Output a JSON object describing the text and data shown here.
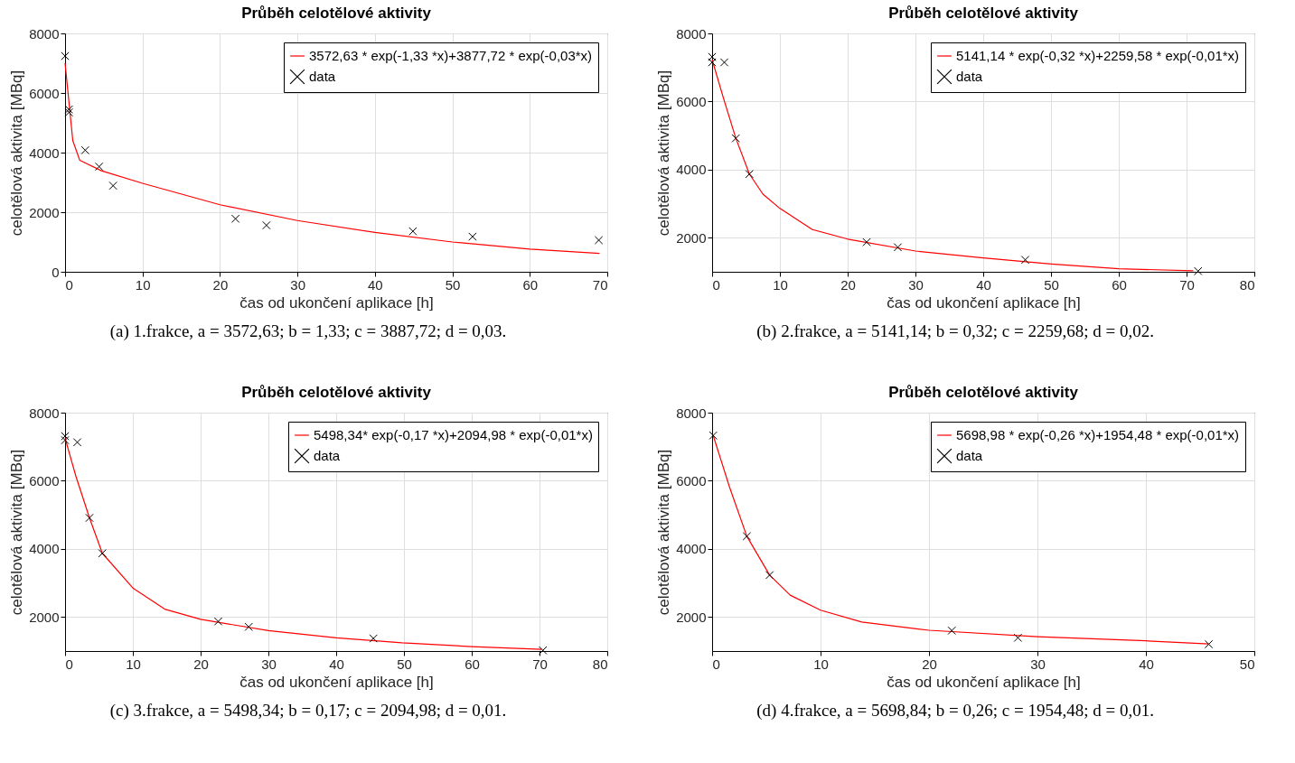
{
  "chart_data": [
    {
      "type": "scatter",
      "title": "Průběh celotělové aktivity",
      "xlabel": "čas od ukončení aplikace [h]",
      "ylabel": "celotělová aktivita [MBq]",
      "xlim": [
        0,
        70
      ],
      "xticks": [
        0,
        10,
        20,
        30,
        40,
        50,
        60,
        70
      ],
      "ylim": [
        0,
        8000
      ],
      "yticks": [
        0,
        2000,
        4000,
        6000,
        8000
      ],
      "grid": true,
      "legend": "top right",
      "annotations": [
        "(a) 1.frakce, a = 3572,63; b = 1,33; c = 3887,72; d = 0,03."
      ],
      "series": [
        {
          "name": "3572,63 * exp(-1,33 *x)+3877,72 * exp(-0,03*x)",
          "type": "line",
          "color": "#ff0000",
          "x": [
            0,
            1.0,
            1.9,
            4.7,
            10,
            20,
            30,
            40,
            50,
            60,
            69
          ],
          "values": [
            7000,
            4400,
            3740,
            3390,
            2970,
            2250,
            1720,
            1320,
            1000,
            760,
            620
          ]
        },
        {
          "name": "data",
          "marker": "cross",
          "color": "#000000",
          "x": [
            0,
            0.5,
            0.5,
            2.6,
            4.4,
            6.2,
            22,
            26,
            44.9,
            52.6,
            68.9
          ],
          "values": [
            7240,
            5450,
            5350,
            4080,
            3530,
            2890,
            1780,
            1560,
            1360,
            1180,
            1060
          ]
        }
      ]
    },
    {
      "type": "scatter",
      "title": "Průběh celotělové aktivity",
      "xlabel": "čas od ukončení aplikace [h]",
      "ylabel": "celotělová aktivita [MBq]",
      "xlim": [
        0,
        80
      ],
      "xticks": [
        0,
        10,
        20,
        30,
        40,
        50,
        60,
        70,
        80
      ],
      "ylim": [
        1000,
        8000
      ],
      "yticks": [
        2000,
        4000,
        6000,
        8000
      ],
      "grid": true,
      "legend": "top right",
      "annotations": [
        "(b) 2.frakce, a = 5141,14; b = 0,32; c = 2259,68; d = 0,02."
      ],
      "series": [
        {
          "name": "5141,14 * exp(-0,32 *x)+2259,58 * exp(-0,01*x)",
          "type": "line",
          "color": "#ff0000",
          "x": [
            0,
            1.7,
            3.5,
            5.5,
            7.5,
            10,
            14.8,
            20,
            30,
            40,
            50,
            60,
            71
          ],
          "values": [
            7230,
            6080,
            4920,
            3870,
            3280,
            2860,
            2240,
            1960,
            1610,
            1410,
            1230,
            1090,
            1030
          ]
        },
        {
          "name": "data",
          "marker": "cross",
          "color": "#000000",
          "x": [
            0,
            0,
            1.8,
            3.5,
            5.5,
            22.8,
            27.4,
            46.2,
            71.7
          ],
          "values": [
            7310,
            7150,
            7150,
            4920,
            3870,
            1870,
            1720,
            1350,
            1020
          ]
        }
      ]
    },
    {
      "type": "scatter",
      "title": "Průběh celotělové aktivity",
      "xlabel": "čas od ukončení aplikace [h]",
      "ylabel": "celotělová aktivita [MBq]",
      "xlim": [
        0,
        80
      ],
      "xticks": [
        0,
        10,
        20,
        30,
        40,
        50,
        60,
        70,
        80
      ],
      "ylim": [
        1000,
        8000
      ],
      "yticks": [
        2000,
        4000,
        6000,
        8000
      ],
      "grid": true,
      "legend": "top right",
      "annotations": [
        "(c) 3.frakce, a = 5498,34; b = 0,17; c = 2094,98; d = 0,01."
      ],
      "series": [
        {
          "name": "5498,34* exp(-0,17 *x)+2094,98 * exp(-0,01*x)",
          "type": "line",
          "color": "#ff0000",
          "x": [
            0,
            1.6,
            3.6,
            5.5,
            10,
            14.7,
            20,
            30,
            40,
            49.7,
            60,
            70.3
          ],
          "values": [
            7250,
            6130,
            4910,
            3870,
            2850,
            2230,
            1930,
            1600,
            1390,
            1240,
            1130,
            1050
          ]
        },
        {
          "name": "data",
          "marker": "cross",
          "color": "#000000",
          "x": [
            0,
            0,
            1.8,
            3.6,
            5.5,
            22.6,
            27.1,
            45.5,
            70.5
          ],
          "values": [
            7310,
            7190,
            7130,
            4910,
            3870,
            1870,
            1710,
            1370,
            1020
          ]
        }
      ]
    },
    {
      "type": "scatter",
      "title": "Průběh celotělové aktivity",
      "xlabel": "čas od ukončení aplikace [h]",
      "ylabel": "celotělová aktivita [MBq]",
      "xlim": [
        0,
        50
      ],
      "xticks": [
        0,
        10,
        20,
        30,
        40,
        50
      ],
      "ylim": [
        1000,
        8000
      ],
      "yticks": [
        2000,
        4000,
        6000,
        8000
      ],
      "grid": true,
      "legend": "top right",
      "annotations": [
        "(d) 4.frakce, a = 5698,84; b = 0,26; c = 1954,48; d = 0,01."
      ],
      "series": [
        {
          "name": "5698,98 * exp(-0,26 *x)+1954,48 * exp(-0,01*x)",
          "type": "line",
          "color": "#ff0000",
          "x": [
            0.1,
            1.6,
            3.2,
            5.3,
            7.2,
            10,
            13.8,
            20,
            30,
            40,
            45.8
          ],
          "values": [
            7330,
            5820,
            4370,
            3230,
            2640,
            2200,
            1850,
            1610,
            1420,
            1300,
            1210
          ]
        },
        {
          "name": "data",
          "marker": "cross",
          "color": "#000000",
          "x": [
            0.1,
            3.2,
            5.3,
            22.1,
            28.2,
            45.8
          ],
          "values": [
            7330,
            4370,
            3230,
            1600,
            1390,
            1200
          ]
        }
      ]
    }
  ]
}
